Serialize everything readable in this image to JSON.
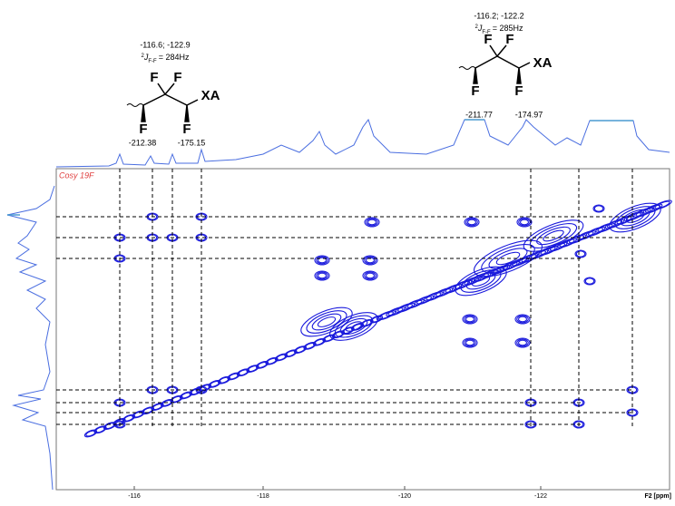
{
  "figure": {
    "spectrum_label": "Cosy 19F",
    "x_axis": {
      "ticks": [
        "-116",
        "-118",
        "-120",
        "-122"
      ],
      "unit_label": "F2 [ppm]"
    },
    "molecule_left": {
      "shifts": "-116.6; -122.9",
      "coupling": {
        "sup": "2",
        "symbol": "J",
        "sub": "F-F",
        "value": "= 284Hz"
      },
      "atoms": [
        "F",
        "F",
        "F",
        "F",
        "XA"
      ],
      "peak_labels": [
        "-212.38",
        "-175.15"
      ]
    },
    "molecule_right": {
      "shifts": "-116.2; -122.2",
      "coupling": {
        "sup": "2",
        "symbol": "J",
        "sub": "F-F",
        "value": "= 285Hz"
      },
      "atoms": [
        "F",
        "F",
        "F",
        "F",
        "XA"
      ],
      "peak_labels": [
        "-211.77",
        "-174.97"
      ]
    }
  }
}
